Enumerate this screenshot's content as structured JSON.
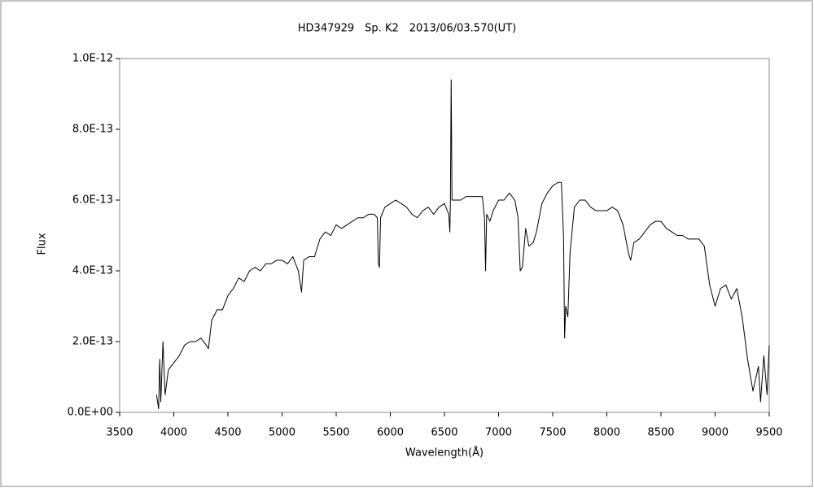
{
  "chart_data": {
    "type": "line",
    "title": "HD347929　Sp. K2　2013/06/03.570(UT)",
    "x_label": "Wavelength(Å)",
    "y_label": "Flux",
    "xlim": [
      3500,
      9500
    ],
    "xticks": [
      3500,
      4000,
      4500,
      5000,
      5500,
      6000,
      6500,
      7000,
      7500,
      8000,
      8500,
      9000,
      9500
    ],
    "ylim": [
      0,
      1e-12
    ],
    "yticks": [
      {
        "value": 0,
        "label": "0.0E+00"
      },
      {
        "value": 2e-13,
        "label": "2.0E-13"
      },
      {
        "value": 4e-13,
        "label": "4.0E-13"
      },
      {
        "value": 6e-13,
        "label": "6.0E-13"
      },
      {
        "value": 8e-13,
        "label": "8.0E-13"
      },
      {
        "value": 1e-12,
        "label": "1.0E-12"
      }
    ],
    "grid": false,
    "x": [
      3840,
      3860,
      3870,
      3880,
      3900,
      3920,
      3950,
      4000,
      4050,
      4100,
      4150,
      4200,
      4250,
      4300,
      4320,
      4350,
      4400,
      4450,
      4500,
      4550,
      4600,
      4650,
      4700,
      4750,
      4800,
      4850,
      4900,
      4950,
      5000,
      5050,
      5100,
      5150,
      5180,
      5200,
      5250,
      5300,
      5350,
      5400,
      5450,
      5500,
      5550,
      5600,
      5650,
      5700,
      5750,
      5800,
      5850,
      5880,
      5890,
      5900,
      5910,
      5950,
      6000,
      6050,
      6100,
      6150,
      6200,
      6250,
      6300,
      6350,
      6400,
      6450,
      6500,
      6540,
      6550,
      6555,
      6562,
      6570,
      6600,
      6650,
      6700,
      6750,
      6800,
      6850,
      6870,
      6880,
      6890,
      6920,
      6950,
      7000,
      7050,
      7100,
      7150,
      7180,
      7200,
      7220,
      7250,
      7280,
      7320,
      7350,
      7400,
      7450,
      7500,
      7550,
      7580,
      7600,
      7610,
      7620,
      7640,
      7660,
      7700,
      7750,
      7800,
      7850,
      7900,
      7950,
      8000,
      8050,
      8100,
      8150,
      8200,
      8220,
      8250,
      8300,
      8350,
      8400,
      8450,
      8500,
      8550,
      8600,
      8650,
      8700,
      8750,
      8800,
      8850,
      8900,
      8950,
      9000,
      9050,
      9100,
      9150,
      9200,
      9250,
      9300,
      9350,
      9400,
      9420,
      9450,
      9480,
      9500
    ],
    "series": [
      {
        "name": "Flux",
        "color": "#000000",
        "values": [
          5e-14,
          1e-14,
          1.5e-13,
          3e-14,
          2e-13,
          5e-14,
          1.2e-13,
          1.4e-13,
          1.6e-13,
          1.9e-13,
          2e-13,
          2e-13,
          2.1e-13,
          1.9e-13,
          1.8e-13,
          2.6e-13,
          2.9e-13,
          2.9e-13,
          3.3e-13,
          3.5e-13,
          3.8e-13,
          3.7e-13,
          4e-13,
          4.1e-13,
          4e-13,
          4.2e-13,
          4.2e-13,
          4.3e-13,
          4.3e-13,
          4.2e-13,
          4.4e-13,
          4e-13,
          3.4e-13,
          4.3e-13,
          4.4e-13,
          4.4e-13,
          4.9e-13,
          5.1e-13,
          5e-13,
          5.3e-13,
          5.2e-13,
          5.3e-13,
          5.4e-13,
          5.5e-13,
          5.5e-13,
          5.6e-13,
          5.6e-13,
          5.5e-13,
          4.2e-13,
          4.1e-13,
          5.5e-13,
          5.8e-13,
          5.9e-13,
          6e-13,
          5.9e-13,
          5.8e-13,
          5.6e-13,
          5.5e-13,
          5.7e-13,
          5.8e-13,
          5.6e-13,
          5.8e-13,
          5.9e-13,
          5.6e-13,
          5.1e-13,
          6e-13,
          9.4e-13,
          6e-13,
          6e-13,
          6e-13,
          6.1e-13,
          6.1e-13,
          6.1e-13,
          6.1e-13,
          5.5e-13,
          4e-13,
          5.6e-13,
          5.4e-13,
          5.7e-13,
          6e-13,
          6e-13,
          6.2e-13,
          6e-13,
          5.5e-13,
          4e-13,
          4.1e-13,
          5.2e-13,
          4.7e-13,
          4.8e-13,
          5.1e-13,
          5.9e-13,
          6.2e-13,
          6.4e-13,
          6.5e-13,
          6.5e-13,
          5e-13,
          2.1e-13,
          3e-13,
          2.7e-13,
          4.5e-13,
          5.8e-13,
          6e-13,
          6e-13,
          5.8e-13,
          5.7e-13,
          5.7e-13,
          5.7e-13,
          5.8e-13,
          5.7e-13,
          5.3e-13,
          4.5e-13,
          4.3e-13,
          4.8e-13,
          4.9e-13,
          5.1e-13,
          5.3e-13,
          5.4e-13,
          5.4e-13,
          5.2e-13,
          5.1e-13,
          5e-13,
          5e-13,
          4.9e-13,
          4.9e-13,
          4.9e-13,
          4.7e-13,
          3.6e-13,
          3e-13,
          3.5e-13,
          3.6e-13,
          3.2e-13,
          3.5e-13,
          2.7e-13,
          1.5e-13,
          6e-14,
          1.3e-13,
          3e-14,
          1.6e-13,
          5e-14,
          1.9e-13
        ]
      }
    ]
  }
}
